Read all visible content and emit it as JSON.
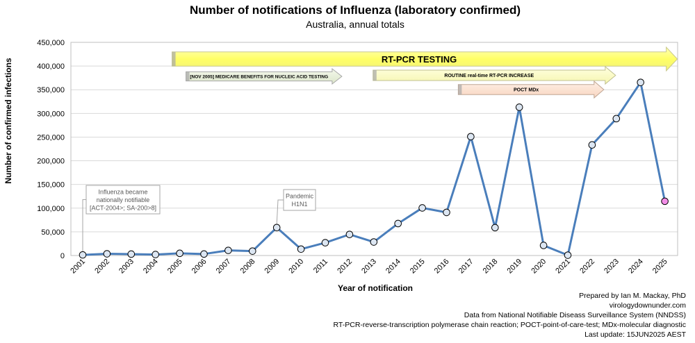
{
  "chart_data": {
    "type": "line",
    "title": "Number of notifications of Influenza (laboratory confirmed)",
    "subtitle": "Australia, annual totals",
    "xlabel": "Year of notification",
    "ylabel": "Number of confirmed infections",
    "ylim": [
      0,
      450000
    ],
    "yticks": [
      "0",
      "50,000",
      "100,000",
      "150,000",
      "200,000",
      "250,000",
      "300,000",
      "350,000",
      "400,000",
      "450,000"
    ],
    "grid": "horizontal",
    "categories": [
      "2001",
      "2002",
      "2003",
      "2004",
      "2005",
      "2006",
      "2007",
      "2008",
      "2009",
      "2010",
      "2011",
      "2012",
      "2013",
      "2014",
      "2015",
      "2016",
      "2017",
      "2018",
      "2019",
      "2020",
      "2021",
      "2022",
      "2023",
      "2024",
      "2025"
    ],
    "series": [
      {
        "values": [
          1300,
          3600,
          3000,
          2100,
          4600,
          3200,
          10800,
          9300,
          59000,
          13500,
          27000,
          44500,
          28500,
          67500,
          100500,
          91000,
          251000,
          58800,
          313000,
          21300,
          700,
          233500,
          289000,
          365500,
          114500
        ],
        "color": "#4A7EBB",
        "marker_fill": "#DCE6F2",
        "highlight_last_color": "#F28DE7"
      }
    ],
    "annotations": [
      {
        "year": "2001",
        "lines": [
          "Influenza became",
          "nationally notifiable",
          "[ACT-2004>; SA-200>8]"
        ]
      },
      {
        "year": "2009",
        "lines": [
          "Pandemic",
          "H1N1"
        ]
      }
    ],
    "arrows": [
      {
        "label": "RT-PCR TESTING",
        "from": "2005",
        "to": "2025",
        "color": "#FFFF99"
      },
      {
        "label": "[NOV 2005] MEDICARE BENEFITS FOR NUCLEIC ACID TESTING",
        "from": "2005",
        "to": "2012",
        "color": "#EBF1DE"
      },
      {
        "label": "ROUTINE real-time RT-PCR INCREASE",
        "from": "2013",
        "to": "2023",
        "color": "#FFFFCC"
      },
      {
        "label": "POCT MDx",
        "from": "2017",
        "to": "2023",
        "color": "#FDE9D9"
      }
    ]
  },
  "credits": [
    "Prepared by Ian M. Mackay, PhD",
    "virologydownunder.com",
    "Data from National Notifiable Diseass Surveillance System (NNDSS)",
    "RT-PCR-reverse-transcription polymerase chain reaction; POCT-point-of-care-test; MDx-molecular diagnostic",
    "Last update: 15JUN2025 AEST"
  ]
}
